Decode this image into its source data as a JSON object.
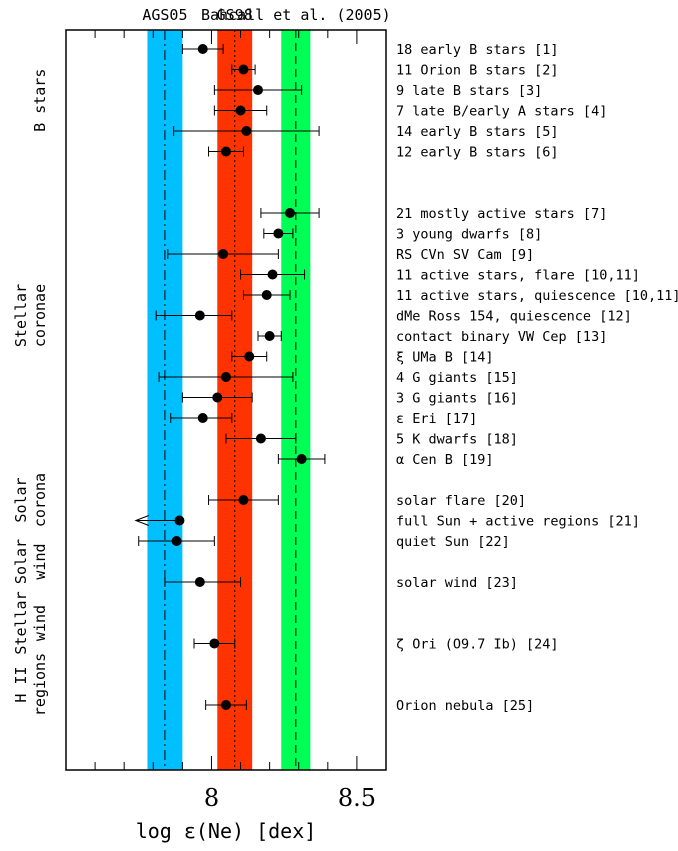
{
  "chart_data": {
    "type": "scatter",
    "title": "",
    "xlabel": "log ε(Ne) [dex]",
    "xlim": [
      7.5,
      8.6
    ],
    "xticks_major": [
      8,
      8.5
    ],
    "xtick_labels": [
      "8",
      "8.5"
    ],
    "grid": false,
    "bands": [
      {
        "label": "AGS05",
        "center": 7.84,
        "range": [
          7.78,
          7.9
        ],
        "color": "#00bfff",
        "line_style": "dash-dot"
      },
      {
        "label": "GS98",
        "center": 8.08,
        "range": [
          8.02,
          8.14
        ],
        "color": "#ff3300",
        "line_style": "dotted"
      },
      {
        "label": "Bahcall et al. (2005)",
        "center": 8.29,
        "range": [
          8.24,
          8.34
        ],
        "color": "#00ff55",
        "line_style": "dashed"
      }
    ],
    "groups": [
      {
        "label": "B stars",
        "row_range": [
          0,
          5
        ]
      },
      {
        "label": "Stellar\ncoronae",
        "row_range": [
          7,
          19
        ]
      },
      {
        "label": "Solar\ncorona",
        "row_range": [
          21,
          23
        ]
      },
      {
        "label": "Solar\nwind",
        "row_range": [
          25,
          25
        ]
      },
      {
        "label": "Stellar\nwind",
        "row_range": [
          28,
          28
        ]
      },
      {
        "label": "H II\nregions",
        "row_range": [
          31,
          31
        ]
      }
    ],
    "points": [
      {
        "row": 0,
        "label": "18 early B stars [1]",
        "value": 7.97,
        "err_low": 0.07,
        "err_high": 0.07
      },
      {
        "row": 1,
        "label": "11 Orion B stars [2]",
        "value": 8.11,
        "err_low": 0.04,
        "err_high": 0.04
      },
      {
        "row": 2,
        "label": "9 late B stars [3]",
        "value": 8.16,
        "err_low": 0.15,
        "err_high": 0.15
      },
      {
        "row": 3,
        "label": "7 late B/early A stars [4]",
        "value": 8.1,
        "err_low": 0.09,
        "err_high": 0.09
      },
      {
        "row": 4,
        "label": "14 early B stars [5]",
        "value": 8.12,
        "err_low": 0.25,
        "err_high": 0.25
      },
      {
        "row": 5,
        "label": "12 early B stars [6]",
        "value": 8.05,
        "err_low": 0.06,
        "err_high": 0.06
      },
      {
        "row": 8,
        "label": "21 mostly active stars [7]",
        "value": 8.27,
        "err_low": 0.1,
        "err_high": 0.1
      },
      {
        "row": 9,
        "label": "3 young dwarfs [8]",
        "value": 8.23,
        "err_low": 0.05,
        "err_high": 0.05
      },
      {
        "row": 10,
        "label": "RS CVn SV Cam [9]",
        "value": 8.04,
        "err_low": 0.19,
        "err_high": 0.19
      },
      {
        "row": 11,
        "label": "11 active stars, flare [10,11]",
        "value": 8.21,
        "err_low": 0.11,
        "err_high": 0.11
      },
      {
        "row": 12,
        "label": "11 active stars, quiescence [10,11]",
        "value": 8.19,
        "err_low": 0.08,
        "err_high": 0.08
      },
      {
        "row": 13,
        "label": "dMe Ross 154, quiescence [12]",
        "value": 7.96,
        "err_low": 0.15,
        "err_high": 0.11
      },
      {
        "row": 14,
        "label": "contact binary VW Cep [13]",
        "value": 8.2,
        "err_low": 0.04,
        "err_high": 0.04
      },
      {
        "row": 15,
        "label": "ξ UMa B [14]",
        "value": 8.13,
        "err_low": 0.06,
        "err_high": 0.06
      },
      {
        "row": 16,
        "label": "4 G giants [15]",
        "value": 8.05,
        "err_low": 0.23,
        "err_high": 0.23
      },
      {
        "row": 17,
        "label": "3 G giants [16]",
        "value": 8.02,
        "err_low": 0.12,
        "err_high": 0.12
      },
      {
        "row": 18,
        "label": "ε Eri [17]",
        "value": 7.97,
        "err_low": 0.11,
        "err_high": 0.1
      },
      {
        "row": 19,
        "label": "5 K dwarfs [18]",
        "value": 8.17,
        "err_low": 0.12,
        "err_high": 0.12
      },
      {
        "row": 20,
        "label": "α Cen B [19]",
        "value": 8.31,
        "err_low": 0.08,
        "err_high": 0.08
      },
      {
        "row": 22,
        "label": "solar flare [20]",
        "value": 8.11,
        "err_low": 0.12,
        "err_high": 0.12
      },
      {
        "row": 23,
        "label": "full Sun + active regions [21]",
        "value": 7.89,
        "err_low": 0.15,
        "err_high": 0,
        "upper_limit": true
      },
      {
        "row": 24,
        "label": "quiet Sun [22]",
        "value": 7.88,
        "err_low": 0.13,
        "err_high": 0.13
      },
      {
        "row": 26,
        "label": "solar wind [23]",
        "value": 7.96,
        "err_low": 0.12,
        "err_high": 0.14
      },
      {
        "row": 29,
        "label": "ζ Ori (O9.7 Ib) [24]",
        "value": 8.01,
        "err_low": 0.07,
        "err_high": 0.07
      },
      {
        "row": 32,
        "label": "Orion nebula [25]",
        "value": 8.05,
        "err_low": 0.07,
        "err_high": 0.07
      }
    ]
  }
}
